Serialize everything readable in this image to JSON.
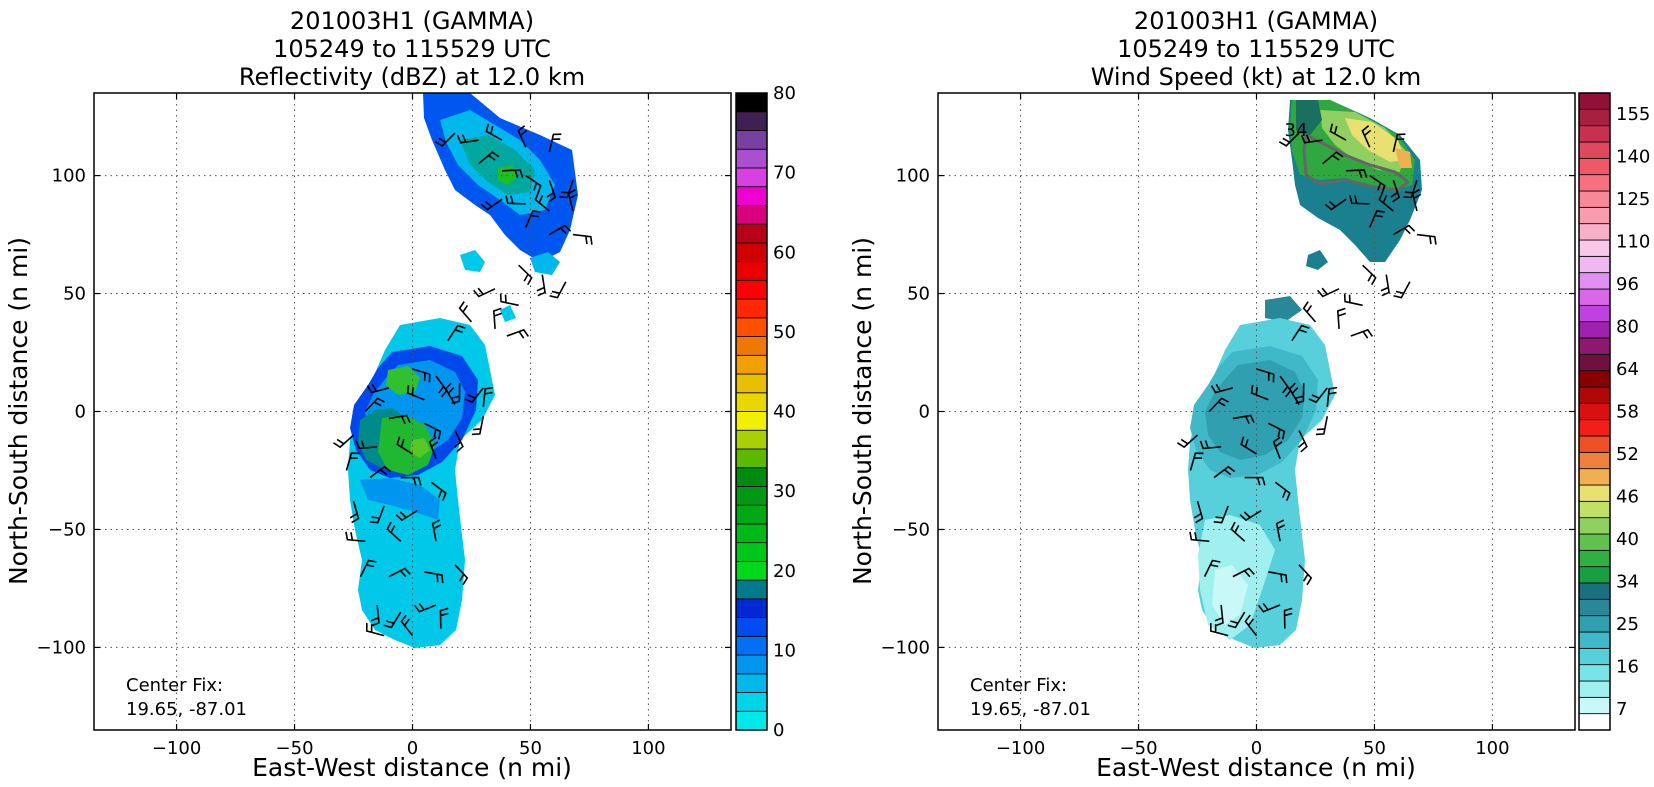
{
  "chart_data": [
    {
      "type": "heatmap",
      "title_lines": [
        "201003H1 (GAMMA)",
        "105249 to 115529 UTC",
        "Reflectivity (dBZ) at 12.0 km"
      ],
      "xlabel": "East-West distance (n mi)",
      "ylabel": "North-South distance (n mi)",
      "xlim": [
        -135,
        135
      ],
      "ylim": [
        -135,
        135
      ],
      "xticks": [
        -100,
        -50,
        0,
        50,
        100
      ],
      "yticks": [
        -100,
        -50,
        0,
        50,
        100
      ],
      "xtick_labels": [
        "−100",
        "−50",
        "0",
        "50",
        "100"
      ],
      "ytick_labels": [
        "−100",
        "−50",
        "0",
        "50",
        "100"
      ],
      "grid": true,
      "annotation_lines": [
        "Center Fix:",
        "19.65, -87.01"
      ],
      "colorbar": {
        "range": [
          0,
          80
        ],
        "ticks": [
          0,
          10,
          20,
          30,
          40,
          50,
          60,
          70,
          80
        ],
        "colors": [
          "#00e8e8",
          "#00d4e8",
          "#00b8ec",
          "#0096f0",
          "#0070f4",
          "#004cf0",
          "#0028d4",
          "#007a8c",
          "#00d81c",
          "#00c81a",
          "#00b818",
          "#00a816",
          "#009814",
          "#008a10",
          "#5cb800",
          "#a8d000",
          "#f0f000",
          "#e8d800",
          "#e8c000",
          "#f0a000",
          "#f07800",
          "#ff5000",
          "#ff2800",
          "#ff0000",
          "#e80000",
          "#d00000",
          "#b80018",
          "#d8007c",
          "#f000d0",
          "#d840e0",
          "#a850d0",
          "#7840a0",
          "#402050",
          "#000000"
        ]
      },
      "barb_color": "#000000"
    },
    {
      "type": "heatmap",
      "title_lines": [
        "201003H1 (GAMMA)",
        "105249 to 115529 UTC",
        "Wind Speed (kt) at 12.0 km"
      ],
      "xlabel": "East-West distance (n mi)",
      "ylabel": "North-South distance (n mi)",
      "xlim": [
        -135,
        135
      ],
      "ylim": [
        -135,
        135
      ],
      "xticks": [
        -100,
        -50,
        0,
        50,
        100
      ],
      "yticks": [
        -100,
        -50,
        0,
        50,
        100
      ],
      "xtick_labels": [
        "−100",
        "−50",
        "0",
        "50",
        "100"
      ],
      "ytick_labels": [
        "−100",
        "−50",
        "0",
        "50",
        "100"
      ],
      "grid": true,
      "annotation_lines": [
        "Center Fix:",
        "19.65, -87.01"
      ],
      "contour_label": "34",
      "colorbar": {
        "range": [
          7,
          160
        ],
        "tick_labels": [
          "7",
          "16",
          "25",
          "34",
          "40",
          "46",
          "52",
          "58",
          "64",
          "80",
          "96",
          "110",
          "125",
          "140",
          "155"
        ],
        "colors": [
          "#ffffff",
          "#c8f8f8",
          "#a0f0f0",
          "#78e4e8",
          "#58d0dc",
          "#40b8c8",
          "#30a0b0",
          "#288898",
          "#1a7080",
          "#18a040",
          "#30b040",
          "#60c050",
          "#90d060",
          "#c0e068",
          "#e8e070",
          "#f0b050",
          "#f08040",
          "#f05028",
          "#f02018",
          "#d81010",
          "#b00808",
          "#880000",
          "#701040",
          "#8c1870",
          "#a020b0",
          "#c040e0",
          "#d868e8",
          "#e090f0",
          "#f0b8f0",
          "#f8c8e8",
          "#f8b0c8",
          "#f89cb0",
          "#f88898",
          "#f87080",
          "#f05868",
          "#e04860",
          "#c83050",
          "#a82040",
          "#901038"
        ]
      },
      "barb_color": "#000000"
    }
  ]
}
